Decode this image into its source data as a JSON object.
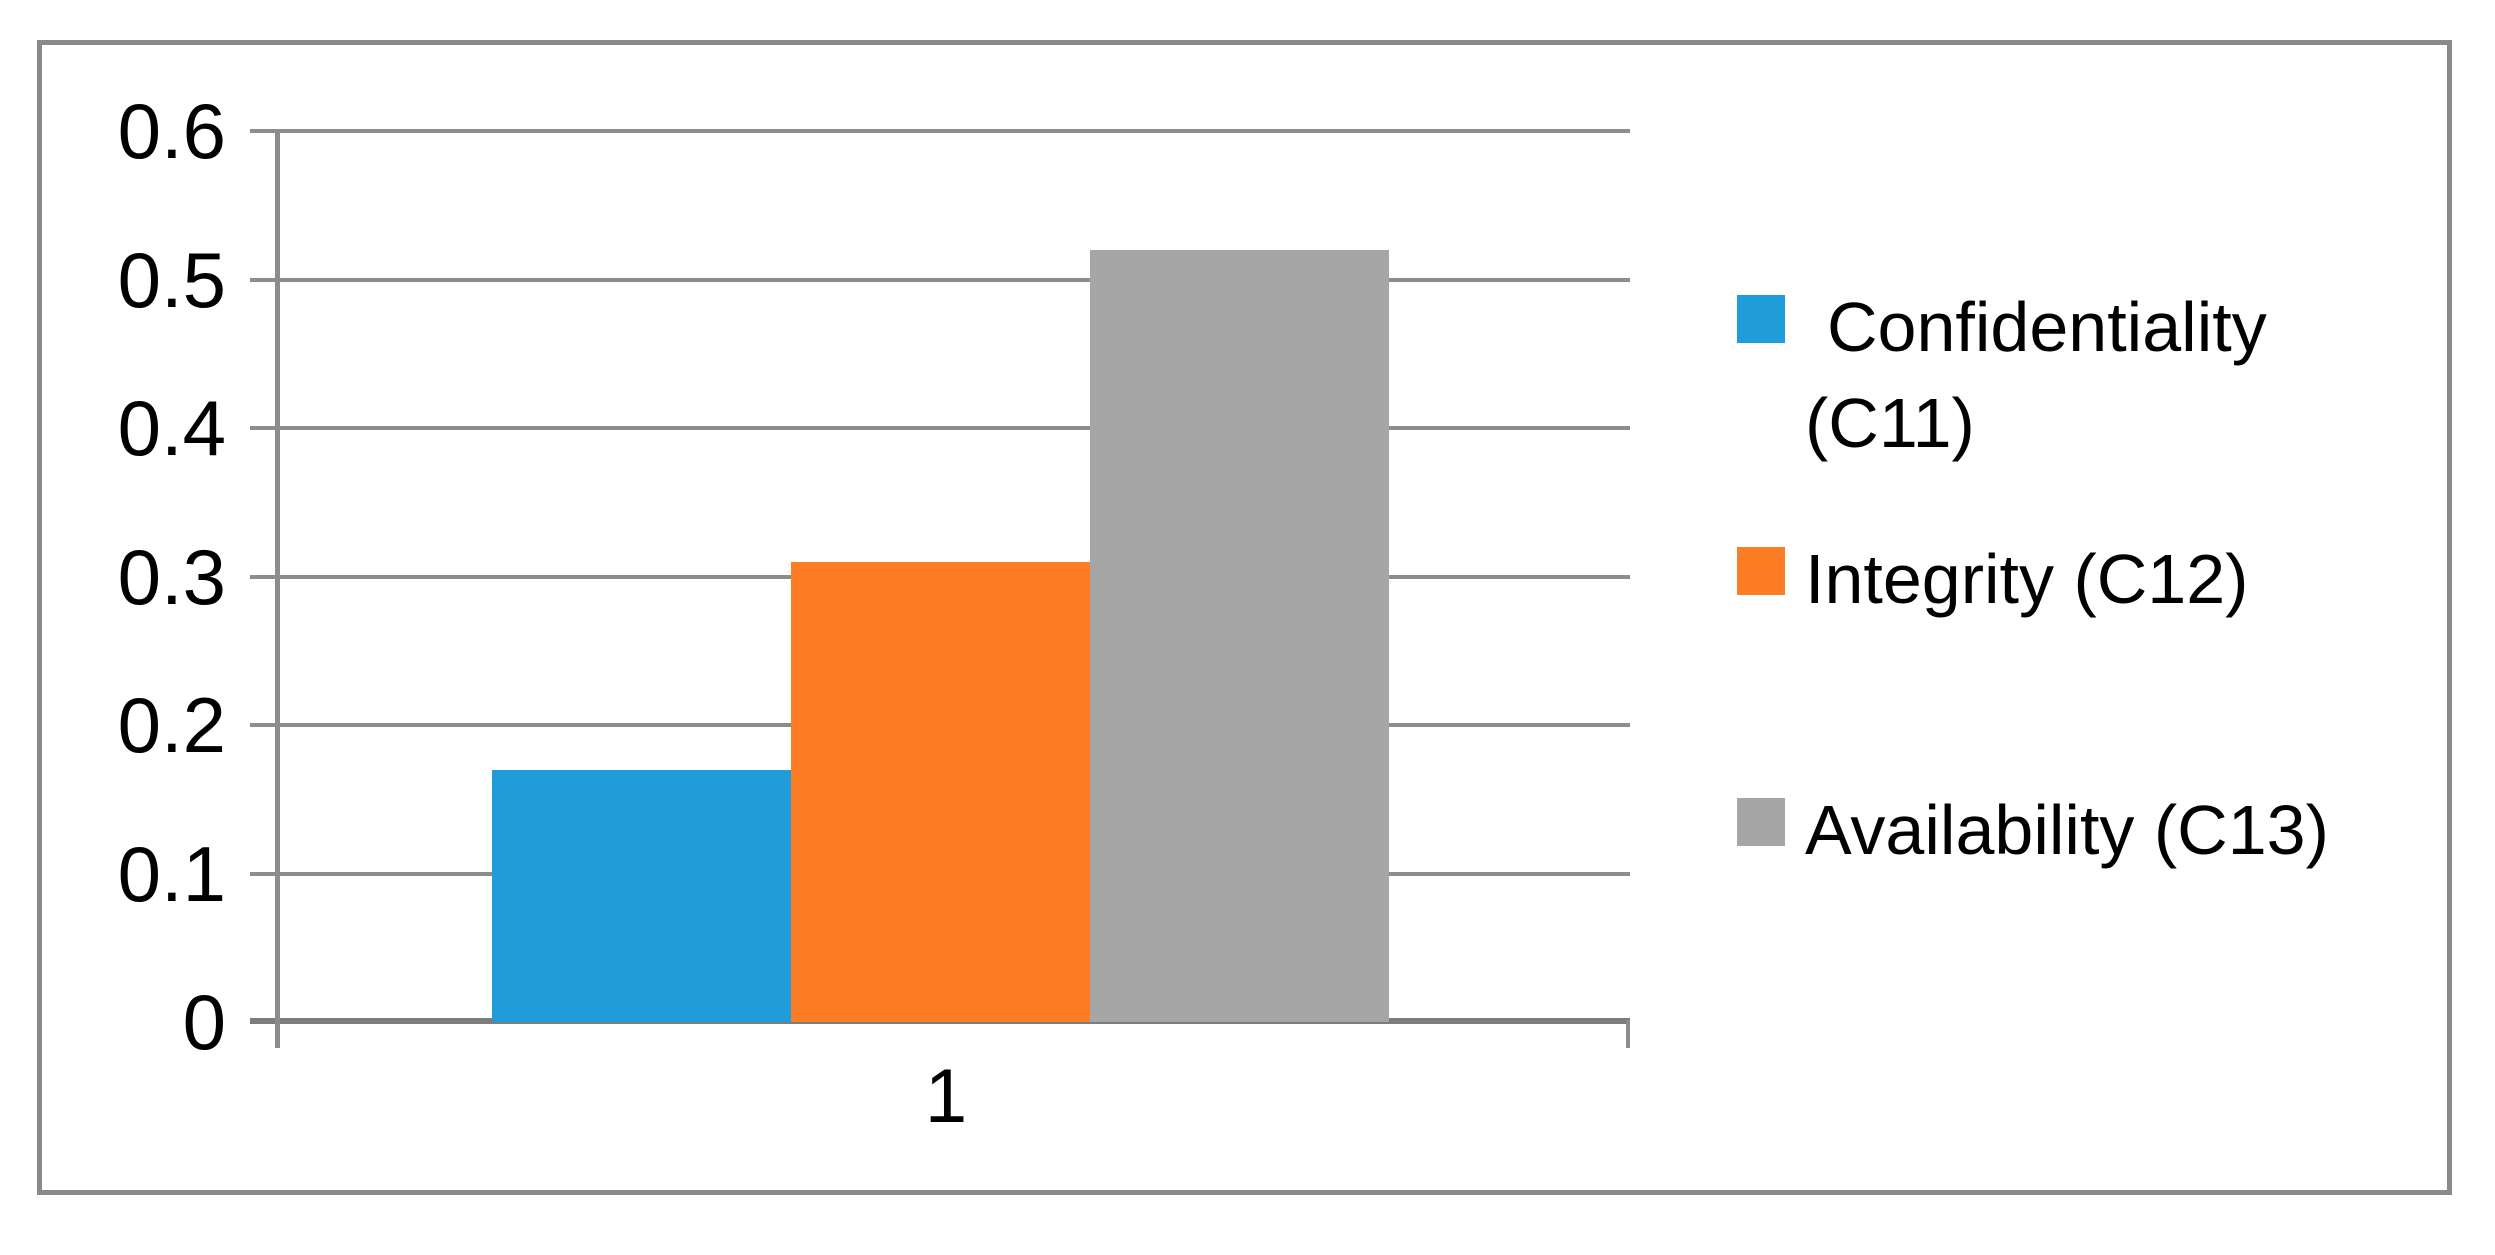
{
  "chart_data": {
    "type": "bar",
    "title": "",
    "xlabel": "",
    "ylabel": "",
    "categories": [
      "1"
    ],
    "series": [
      {
        "name": "Confidentiality (C11)",
        "values": [
          0.17
        ],
        "color": "#209CD8"
      },
      {
        "name": "Integrity (C12)",
        "values": [
          0.31
        ],
        "color": "#FC7D23"
      },
      {
        "name": "Availability (C13)",
        "values": [
          0.52
        ],
        "color": "#A6A6A6"
      }
    ],
    "ylim": [
      0,
      0.6
    ],
    "ytick_step": 0.1,
    "ytick_labels": [
      "0",
      "0.1",
      "0.2",
      "0.3",
      "0.4",
      "0.5",
      "0.6"
    ],
    "grid": true,
    "legend_position": "right"
  },
  "legend": {
    "items": [
      {
        "label": "Confidentiality\n(C11)",
        "color": "#209CD8"
      },
      {
        "label": "Integrity (C12)",
        "color": "#FC7D23"
      },
      {
        "label": "Availability (C13)",
        "color": "#A6A6A6"
      }
    ]
  },
  "colors": {
    "gridline": "#8c8c8c",
    "axis_line": "#7d7d7d",
    "chart_border": "#8a8a8a",
    "background": "#ffffff",
    "text": "#000000"
  }
}
